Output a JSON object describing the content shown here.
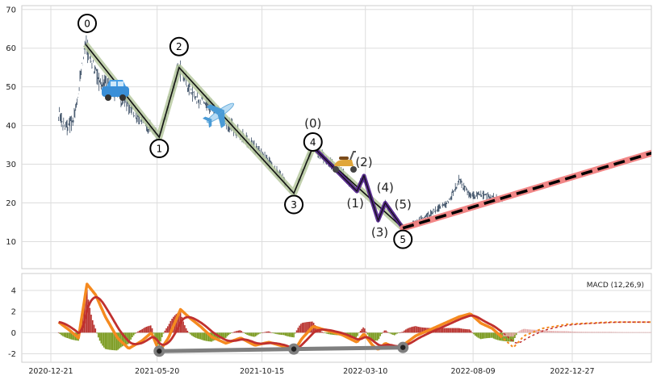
{
  "chart_data": [
    {
      "type": "line",
      "panel": "price",
      "y_ticks": [
        10,
        20,
        30,
        40,
        50,
        60,
        70
      ],
      "ylim": [
        3,
        71
      ],
      "xlim": [
        "2020-12-02",
        "2023-06-10"
      ],
      "grid": true,
      "wave_main": {
        "x": [
          "2021-02-08",
          "2021-05-23",
          "2021-06-20",
          "2021-11-29",
          "2021-12-26",
          "2022-05-02"
        ],
        "y": [
          61,
          37,
          55,
          22.5,
          34.5,
          13.5
        ],
        "labels": [
          "0",
          "1",
          "2",
          "3",
          "4",
          "5"
        ]
      },
      "wave_sub": {
        "x": [
          "2021-12-26",
          "2022-02-26",
          "2022-03-08",
          "2022-03-28",
          "2022-04-07",
          "2022-05-02"
        ],
        "y": [
          34.5,
          23,
          27,
          15.5,
          20,
          13.5
        ],
        "labels": [
          "(0)",
          "(1)",
          "(2)",
          "(3)",
          "(4)",
          "(5)"
        ]
      },
      "projection": {
        "x": [
          "2022-05-02",
          "2023-05-26"
        ],
        "y": [
          13.5,
          35
        ]
      },
      "price_series": {
        "x_start": "2021-01-01",
        "x_end": "2022-09-20",
        "anchors_x": [
          "2021-01-01",
          "2021-01-10",
          "2021-01-22",
          "2021-02-08",
          "2021-02-25",
          "2021-03-20",
          "2021-04-15",
          "2021-05-23",
          "2021-06-20",
          "2021-07-10",
          "2021-08-01",
          "2021-09-01",
          "2021-10-01",
          "2021-11-01",
          "2021-11-29",
          "2021-12-26",
          "2022-01-15",
          "2022-02-05",
          "2022-02-26",
          "2022-03-08",
          "2022-03-28",
          "2022-04-07",
          "2022-05-02",
          "2022-05-20",
          "2022-06-15",
          "2022-07-05",
          "2022-07-20",
          "2022-08-05",
          "2022-08-25",
          "2022-09-20"
        ],
        "anchors_y": [
          43,
          39,
          41,
          61,
          52,
          49,
          44,
          37,
          55,
          48,
          45,
          40,
          35,
          29,
          22.5,
          34.5,
          31,
          28,
          23,
          27,
          15.5,
          20,
          13.5,
          15,
          18,
          20,
          26,
          22,
          22,
          21
        ]
      },
      "icons": [
        "car-icon",
        "airplane-icon",
        "scooter-icon"
      ]
    },
    {
      "type": "bar",
      "panel": "macd",
      "legend": "MACD (12,26,9)",
      "legend_position": "upper-right",
      "y_ticks": [
        -2,
        0,
        2,
        4
      ],
      "ylim": [
        -2.8,
        5.6
      ],
      "x_ticks": [
        "2020-12-21",
        "2021-05-20",
        "2021-10-15",
        "2022-03-10",
        "2022-08-09",
        "2022-12-27"
      ],
      "macd_anchors": {
        "x": [
          "2021-01-01",
          "2021-01-15",
          "2021-01-29",
          "2021-02-10",
          "2021-02-22",
          "2021-03-08",
          "2021-03-25",
          "2021-04-10",
          "2021-04-28",
          "2021-05-12",
          "2021-05-23",
          "2021-06-05",
          "2021-06-22",
          "2021-07-05",
          "2021-07-20",
          "2021-08-05",
          "2021-08-25",
          "2021-09-15",
          "2021-10-05",
          "2021-10-25",
          "2021-11-15",
          "2021-11-29",
          "2021-12-10",
          "2021-12-26",
          "2022-01-15",
          "2022-02-05",
          "2022-02-26",
          "2022-03-08",
          "2022-03-20",
          "2022-03-28",
          "2022-04-07",
          "2022-04-20",
          "2022-05-02",
          "2022-05-20",
          "2022-06-10",
          "2022-06-30",
          "2022-07-20",
          "2022-08-05",
          "2022-08-20",
          "2022-09-05",
          "2022-09-20",
          "2022-10-05",
          "2022-10-20",
          "2022-11-15",
          "2022-12-20",
          "2023-02-20",
          "2023-05-26"
        ],
        "y": [
          1.0,
          0.3,
          -0.5,
          4.6,
          3.6,
          1.5,
          -0.5,
          -1.5,
          -0.8,
          0.0,
          -1.8,
          -0.5,
          2.2,
          1.4,
          0.6,
          -0.4,
          -1.0,
          -0.5,
          -1.2,
          -0.9,
          -1.3,
          -1.8,
          -0.6,
          0.6,
          0.2,
          -0.2,
          -0.9,
          -0.1,
          -1.2,
          -1.6,
          -1.0,
          -1.4,
          -1.2,
          -0.3,
          0.3,
          0.9,
          1.5,
          1.8,
          0.9,
          0.4,
          -0.5,
          -1.4,
          -0.3,
          0.4,
          0.8,
          1.0,
          1.0
        ]
      },
      "trend_connector": {
        "x": [
          "2021-05-23",
          "2021-11-29",
          "2022-05-02"
        ],
        "y": [
          -1.75,
          -1.55,
          -1.4
        ]
      }
    }
  ]
}
